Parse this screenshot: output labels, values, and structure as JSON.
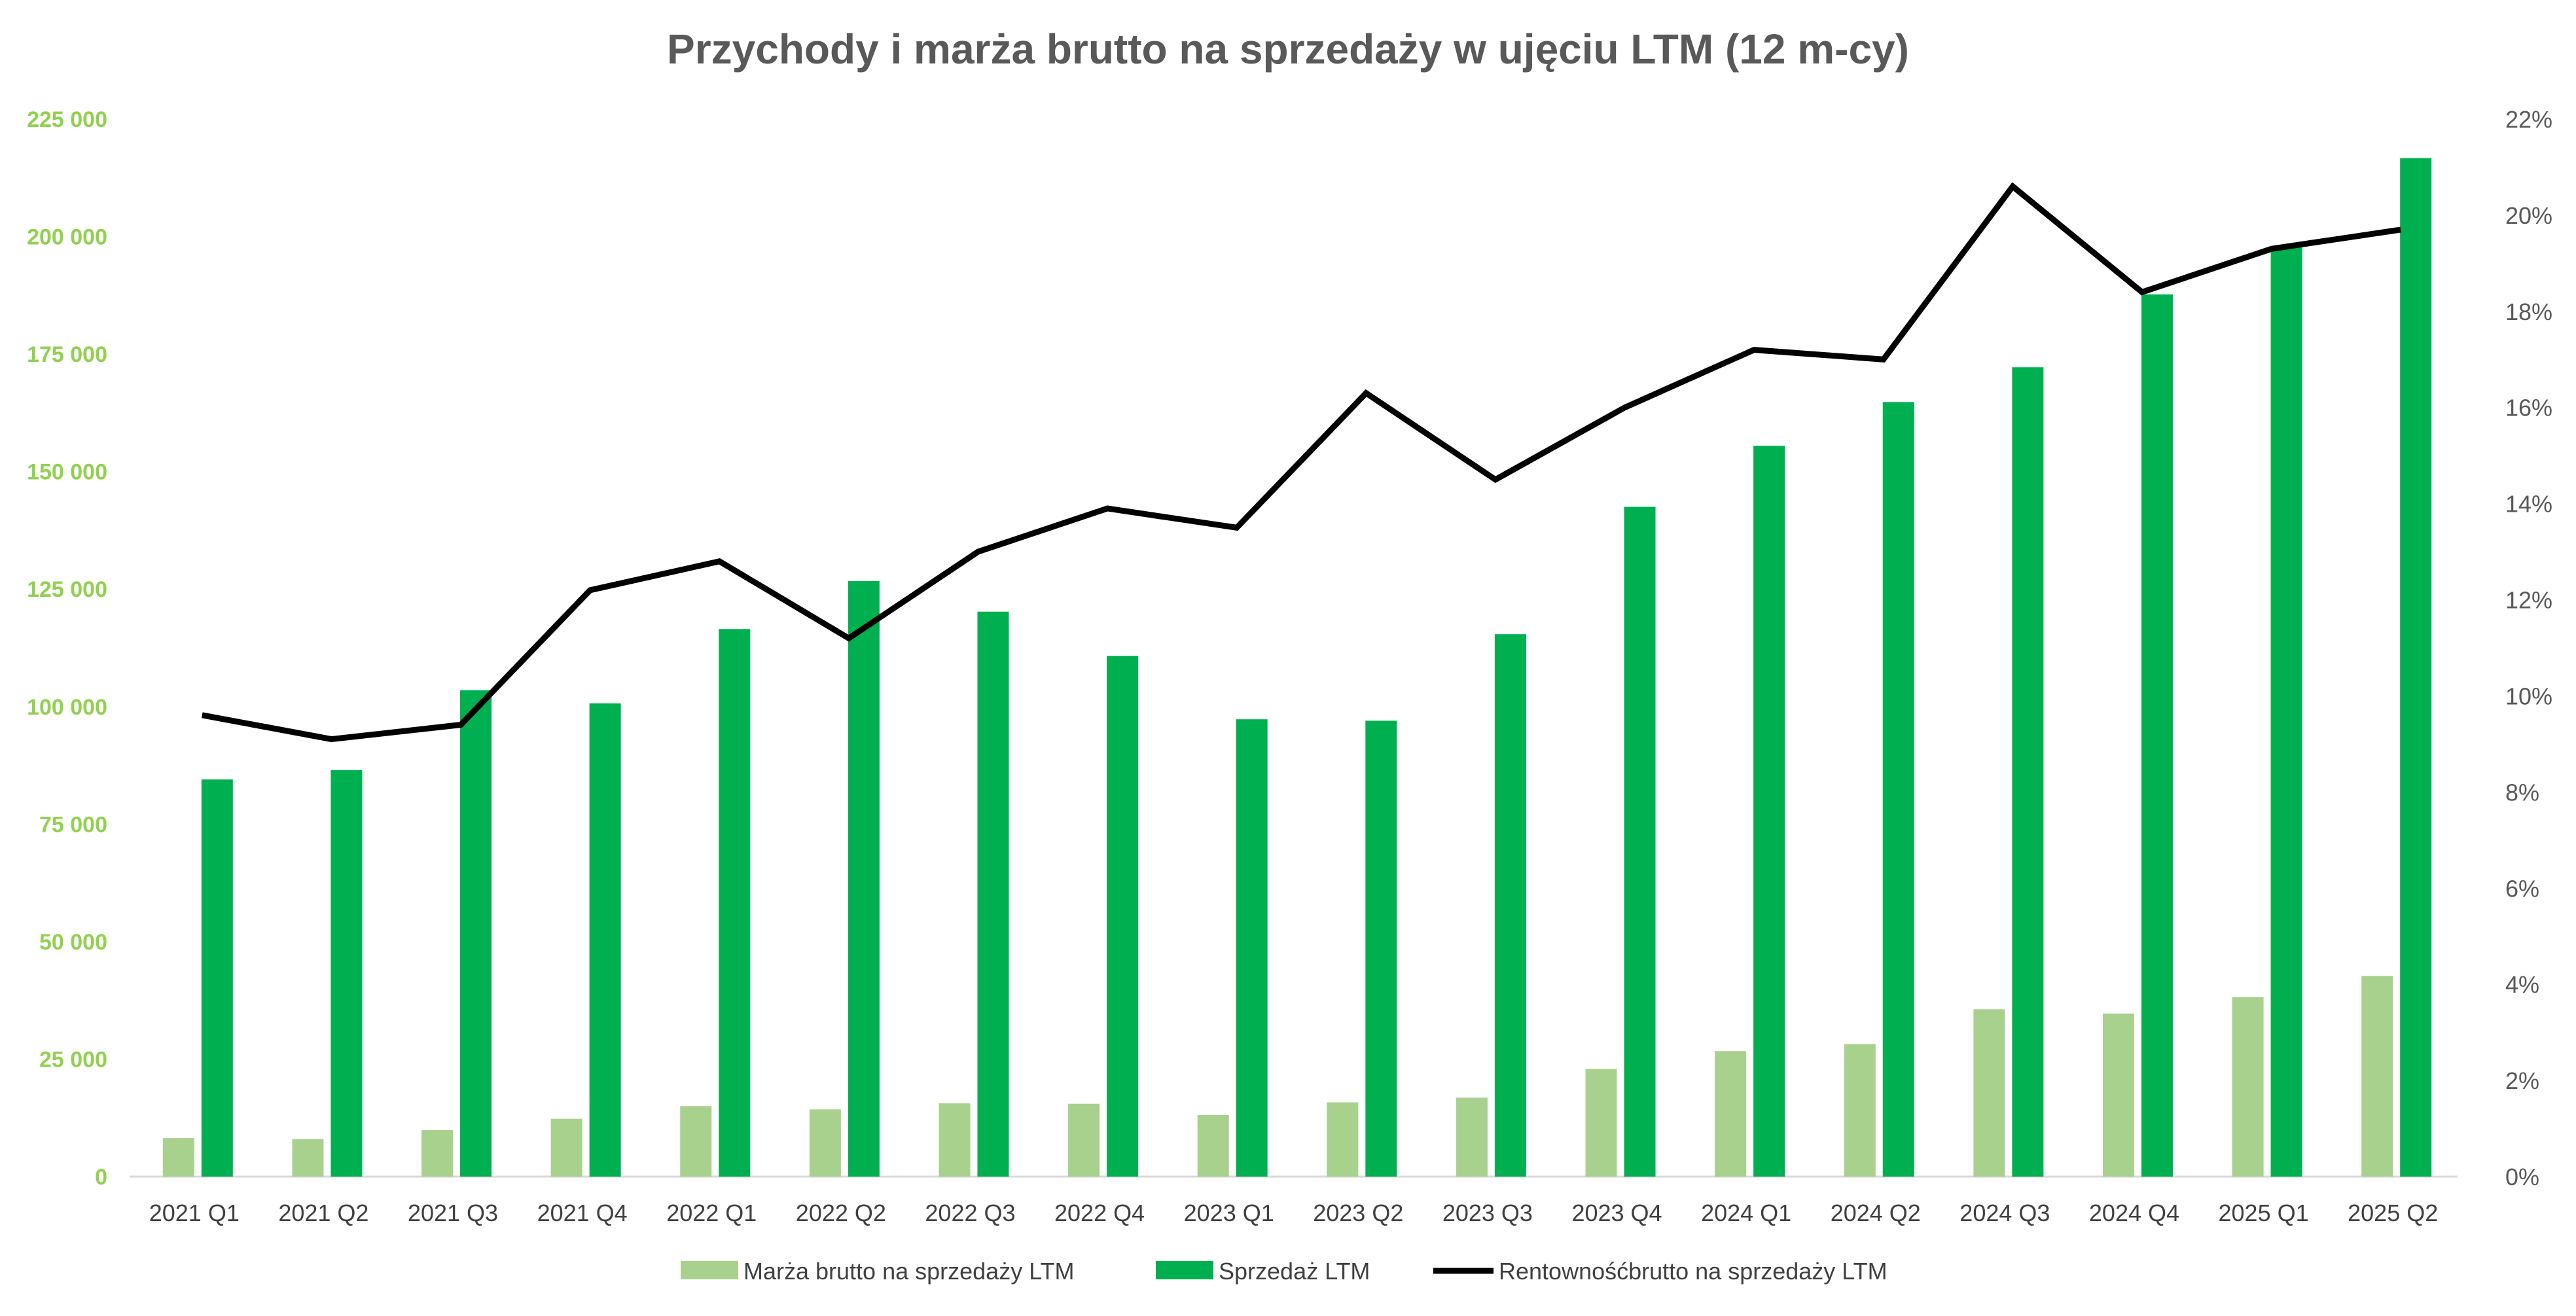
{
  "chart_data": {
    "type": "bar",
    "title": "Przychody i marża brutto na sprzedaży w ujęciu LTM (12 m-cy)",
    "categories": [
      "2021 Q1",
      "2021 Q2",
      "2021 Q3",
      "2021 Q4",
      "2022 Q1",
      "2022 Q2",
      "2022 Q3",
      "2022 Q4",
      "2023 Q1",
      "2023 Q2",
      "2023 Q3",
      "2023 Q4",
      "2024 Q1",
      "2024 Q2",
      "2024 Q3",
      "2024 Q4",
      "2025 Q1",
      "2025 Q2"
    ],
    "series": [
      {
        "name": "Marża brutto na sprzedaży LTM",
        "type": "bar",
        "axis": "left",
        "color": "#a9d18e",
        "values": [
          8200,
          8000,
          9900,
          12300,
          15000,
          14300,
          15600,
          15500,
          13100,
          15800,
          16800,
          22900,
          26700,
          28200,
          35600,
          34700,
          38200,
          42700
        ]
      },
      {
        "name": "Sprzedaż LTM",
        "type": "bar",
        "axis": "left",
        "color": "#00b050",
        "values": [
          84500,
          86500,
          103500,
          100700,
          116500,
          126700,
          120200,
          110800,
          97300,
          97000,
          115400,
          142500,
          155500,
          164800,
          172200,
          187700,
          198000,
          216700
        ]
      },
      {
        "name": "Rentownośćbrutto na sprzedaży LTM",
        "type": "line",
        "axis": "right",
        "color": "#000000",
        "values": [
          9.6,
          9.1,
          9.4,
          12.2,
          12.8,
          11.2,
          13.0,
          13.9,
          13.5,
          16.3,
          14.5,
          16.0,
          17.2,
          17.0,
          20.6,
          18.4,
          19.3,
          19.7
        ]
      }
    ],
    "y_left": {
      "min": 0,
      "max": 225000,
      "ticks": [
        "0",
        "25 000",
        "50 000",
        "75 000",
        "100 000",
        "125 000",
        "150 000",
        "175 000",
        "200 000",
        "225 000"
      ],
      "color": "#92d050"
    },
    "y_right": {
      "min": 0,
      "max": 22,
      "ticks": [
        "0%",
        "2%",
        "4%",
        "6%",
        "8%",
        "10%",
        "12%",
        "14%",
        "16%",
        "18%",
        "20%",
        "22%"
      ],
      "color": "#595959"
    },
    "legend_position": "bottom",
    "grid": false
  }
}
